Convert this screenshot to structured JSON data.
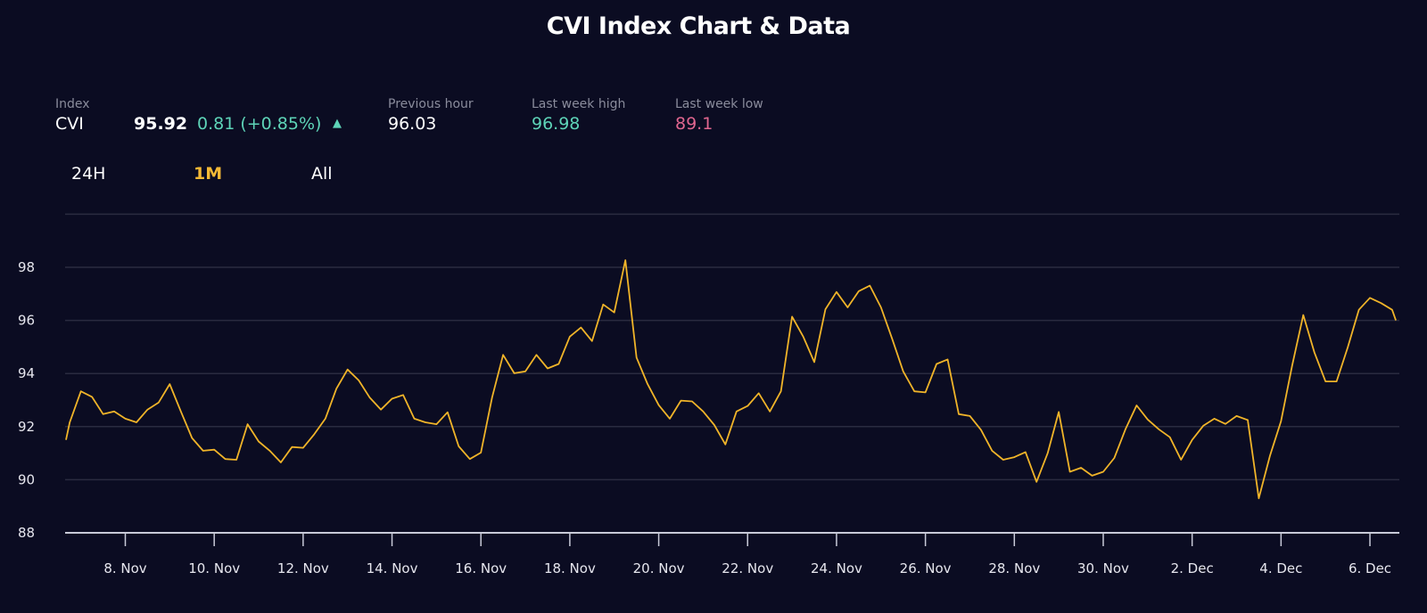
{
  "title": "CVI Index Chart & Data",
  "stats": {
    "index_label": "Index",
    "index_name": "CVI",
    "value": "95.92",
    "change": "0.81 (+0.85%)",
    "change_icon": "triangle-up-icon",
    "prev_hour_label": "Previous hour",
    "prev_hour_value": "96.03",
    "week_high_label": "Last week high",
    "week_high_value": "96.98",
    "week_low_label": "Last week low",
    "week_low_value": "89.1"
  },
  "tabs": [
    {
      "label": "24H",
      "active": false
    },
    {
      "label": "1M",
      "active": true
    },
    {
      "label": "All",
      "active": false
    }
  ],
  "colors": {
    "background": "#0b0c22",
    "line": "#f0b429",
    "positive": "#5ed4b8",
    "negative": "#e0668f",
    "active_tab": "#f5b935"
  },
  "chart_data": {
    "type": "line",
    "ylim": [
      88,
      100
    ],
    "yticks": [
      "88",
      "90",
      "92",
      "94",
      "96",
      "98"
    ],
    "xticks": [
      {
        "date": "11-08",
        "label": "8. Nov"
      },
      {
        "date": "11-10",
        "label": "10. Nov"
      },
      {
        "date": "11-12",
        "label": "12. Nov"
      },
      {
        "date": "11-14",
        "label": "14. Nov"
      },
      {
        "date": "11-16",
        "label": "16. Nov"
      },
      {
        "date": "11-18",
        "label": "18. Nov"
      },
      {
        "date": "11-20",
        "label": "20. Nov"
      },
      {
        "date": "11-22",
        "label": "22. Nov"
      },
      {
        "date": "11-24",
        "label": "24. Nov"
      },
      {
        "date": "11-26",
        "label": "26. Nov"
      },
      {
        "date": "11-28",
        "label": "28. Nov"
      },
      {
        "date": "11-30",
        "label": "30. Nov"
      },
      {
        "date": "12-02",
        "label": "2. Dec"
      },
      {
        "date": "12-04",
        "label": "4. Dec"
      },
      {
        "date": "12-06",
        "label": "6. Dec"
      }
    ],
    "grid": true,
    "points": [
      [
        "11-06T16:00",
        91.5
      ],
      [
        "11-06T18:00",
        92.16
      ],
      [
        "11-07T00:00",
        93.33
      ],
      [
        "11-07T06:00",
        93.12
      ],
      [
        "11-07T12:00",
        92.47
      ],
      [
        "11-07T18:00",
        92.57
      ],
      [
        "11-08T00:00",
        92.3
      ],
      [
        "11-08T06:00",
        92.16
      ],
      [
        "11-08T12:00",
        92.64
      ],
      [
        "11-08T18:00",
        92.91
      ],
      [
        "11-09T00:00",
        93.6
      ],
      [
        "11-09T06:00",
        92.57
      ],
      [
        "11-09T12:00",
        91.57
      ],
      [
        "11-09T18:00",
        91.09
      ],
      [
        "11-10T00:00",
        91.13
      ],
      [
        "11-10T06:00",
        90.78
      ],
      [
        "11-10T12:00",
        90.75
      ],
      [
        "11-10T18:00",
        92.09
      ],
      [
        "11-11T00:00",
        91.44
      ],
      [
        "11-11T06:00",
        91.09
      ],
      [
        "11-11T12:00",
        90.65
      ],
      [
        "11-11T18:00",
        91.23
      ],
      [
        "11-12T00:00",
        91.2
      ],
      [
        "11-12T06:00",
        91.71
      ],
      [
        "11-12T12:00",
        92.3
      ],
      [
        "11-12T18:00",
        93.43
      ],
      [
        "11-13T00:00",
        94.15
      ],
      [
        "11-13T06:00",
        93.74
      ],
      [
        "11-13T12:00",
        93.09
      ],
      [
        "11-13T18:00",
        92.64
      ],
      [
        "11-14T00:00",
        93.05
      ],
      [
        "11-14T06:00",
        93.19
      ],
      [
        "11-14T12:00",
        92.3
      ],
      [
        "11-14T18:00",
        92.16
      ],
      [
        "11-15T00:00",
        92.09
      ],
      [
        "11-15T06:00",
        92.54
      ],
      [
        "11-15T12:00",
        91.26
      ],
      [
        "11-15T18:00",
        90.78
      ],
      [
        "11-16T00:00",
        91.02
      ],
      [
        "11-16T06:00",
        93.09
      ],
      [
        "11-16T12:00",
        94.7
      ],
      [
        "11-16T18:00",
        94.01
      ],
      [
        "11-17T00:00",
        94.08
      ],
      [
        "11-17T06:00",
        94.7
      ],
      [
        "11-17T12:00",
        94.19
      ],
      [
        "11-17T18:00",
        94.36
      ],
      [
        "11-18T00:00",
        95.39
      ],
      [
        "11-18T06:00",
        95.73
      ],
      [
        "11-18T12:00",
        95.22
      ],
      [
        "11-18T18:00",
        96.6
      ],
      [
        "11-19T00:00",
        96.3
      ],
      [
        "11-19T06:00",
        98.27
      ],
      [
        "11-19T12:00",
        94.6
      ],
      [
        "11-19T18:00",
        93.6
      ],
      [
        "11-20T00:00",
        92.81
      ],
      [
        "11-20T06:00",
        92.3
      ],
      [
        "11-20T12:00",
        92.98
      ],
      [
        "11-20T18:00",
        92.95
      ],
      [
        "11-21T00:00",
        92.57
      ],
      [
        "11-21T06:00",
        92.06
      ],
      [
        "11-21T12:00",
        91.33
      ],
      [
        "11-21T18:00",
        92.57
      ],
      [
        "11-22T00:00",
        92.78
      ],
      [
        "11-22T06:00",
        93.26
      ],
      [
        "11-22T12:00",
        92.57
      ],
      [
        "11-22T18:00",
        93.33
      ],
      [
        "11-23T00:00",
        96.14
      ],
      [
        "11-23T06:00",
        95.39
      ],
      [
        "11-23T12:00",
        94.43
      ],
      [
        "11-23T18:00",
        96.42
      ],
      [
        "11-24T00:00",
        97.07
      ],
      [
        "11-24T06:00",
        96.49
      ],
      [
        "11-24T12:00",
        97.1
      ],
      [
        "11-24T18:00",
        97.31
      ],
      [
        "11-25T00:00",
        96.49
      ],
      [
        "11-25T06:00",
        95.32
      ],
      [
        "11-25T12:00",
        94.08
      ],
      [
        "11-25T18:00",
        93.33
      ],
      [
        "11-26T00:00",
        93.29
      ],
      [
        "11-26T06:00",
        94.36
      ],
      [
        "11-26T12:00",
        94.53
      ],
      [
        "11-26T18:00",
        92.47
      ],
      [
        "11-27T00:00",
        92.4
      ],
      [
        "11-27T06:00",
        91.88
      ],
      [
        "11-27T12:00",
        91.09
      ],
      [
        "11-27T18:00",
        90.75
      ],
      [
        "11-28T00:00",
        90.85
      ],
      [
        "11-28T06:00",
        91.04
      ],
      [
        "11-28T12:00",
        89.92
      ],
      [
        "11-28T18:00",
        91.0
      ],
      [
        "11-29T00:00",
        92.55
      ],
      [
        "11-29T06:00",
        90.3
      ],
      [
        "11-29T12:00",
        90.45
      ],
      [
        "11-29T18:00",
        90.15
      ],
      [
        "11-30T00:00",
        90.3
      ],
      [
        "11-30T06:00",
        90.82
      ],
      [
        "11-30T12:00",
        91.9
      ],
      [
        "11-30T18:00",
        92.8
      ],
      [
        "12-01T00:00",
        92.27
      ],
      [
        "12-01T06:00",
        91.9
      ],
      [
        "12-01T12:00",
        91.6
      ],
      [
        "12-01T18:00",
        90.75
      ],
      [
        "12-02T00:00",
        91.5
      ],
      [
        "12-02T06:00",
        92.03
      ],
      [
        "12-02T12:00",
        92.3
      ],
      [
        "12-02T18:00",
        92.1
      ],
      [
        "12-03T00:00",
        92.4
      ],
      [
        "12-03T06:00",
        92.25
      ],
      [
        "12-03T12:00",
        89.3
      ],
      [
        "12-03T18:00",
        90.9
      ],
      [
        "12-04T00:00",
        92.2
      ],
      [
        "12-04T06:00",
        94.3
      ],
      [
        "12-04T12:00",
        96.2
      ],
      [
        "12-04T18:00",
        94.8
      ],
      [
        "12-05T00:00",
        93.7
      ],
      [
        "12-05T06:00",
        93.7
      ],
      [
        "12-05T12:00",
        94.98
      ],
      [
        "12-05T18:00",
        96.4
      ],
      [
        "12-06T00:00",
        96.85
      ],
      [
        "12-06T06:00",
        96.65
      ],
      [
        "12-06T12:00",
        96.4
      ],
      [
        "12-06T14:00",
        96.0
      ]
    ]
  }
}
